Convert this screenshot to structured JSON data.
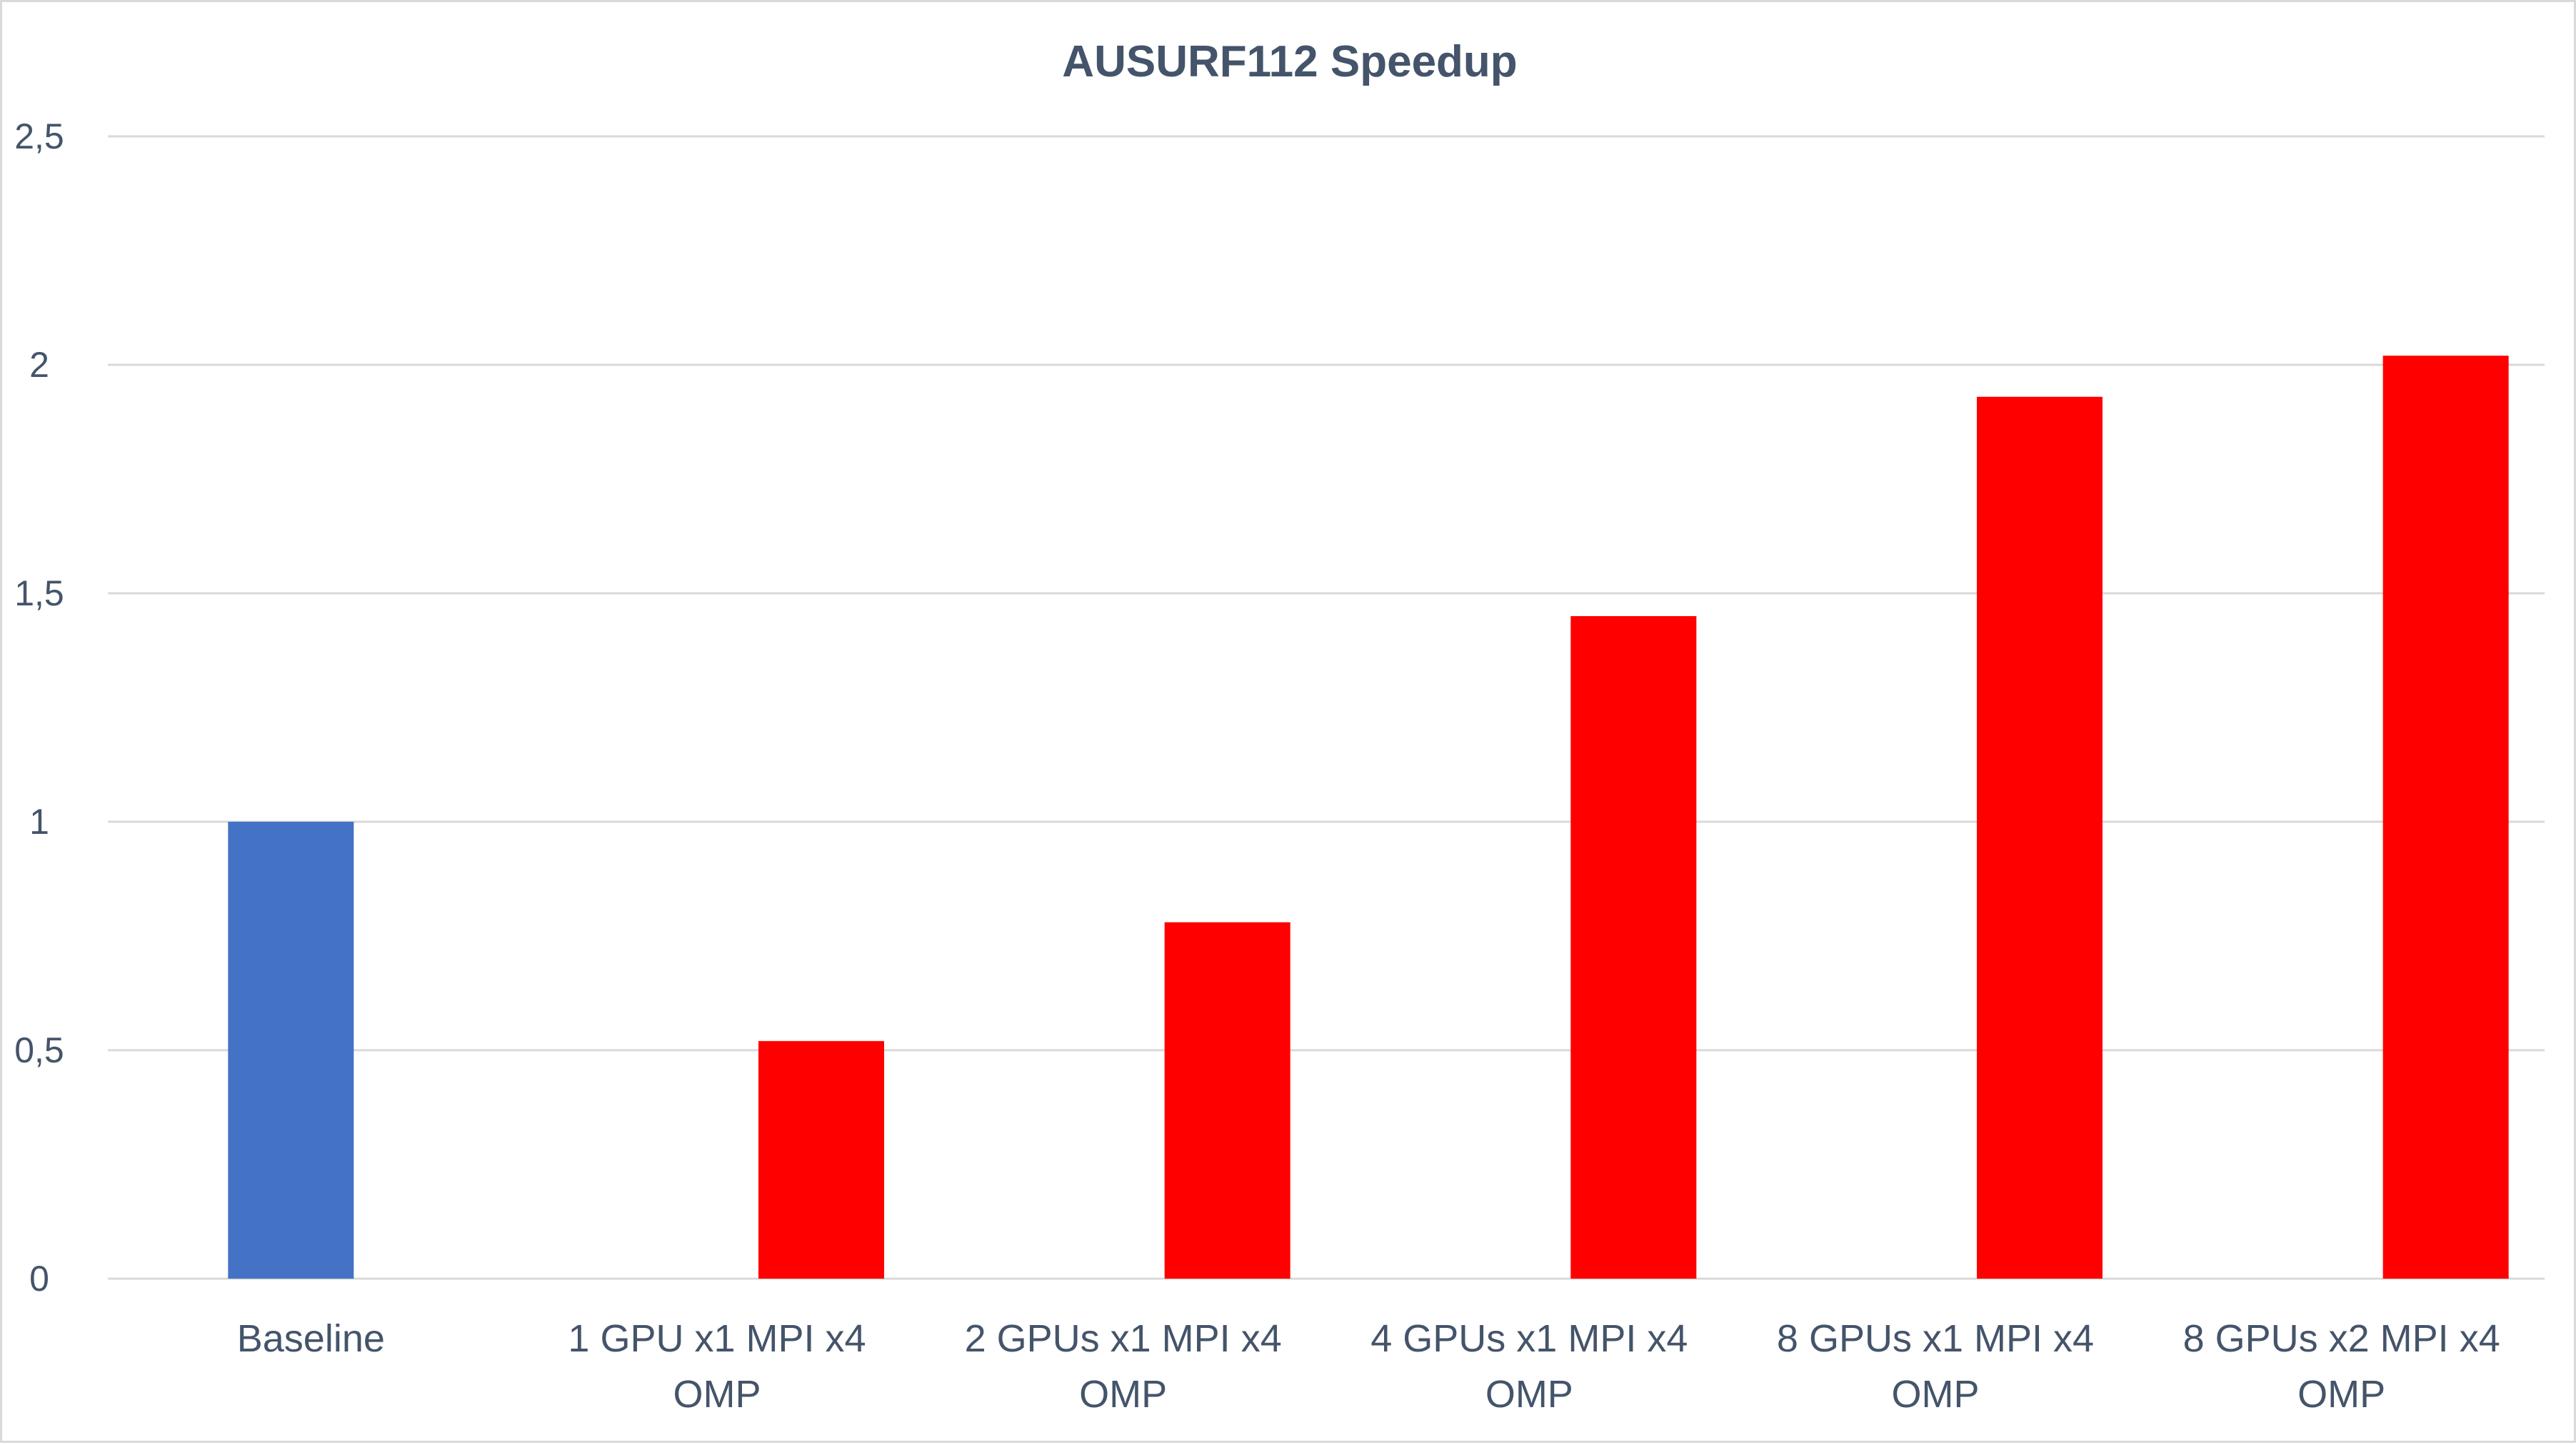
{
  "chart_data": {
    "type": "bar",
    "title": "AUSURF112 Speedup",
    "xlabel": "",
    "ylabel": "",
    "categories": [
      [
        "Baseline"
      ],
      [
        "1 GPU x1 MPI x4",
        "OMP"
      ],
      [
        "2 GPUs x1 MPI x4",
        "OMP"
      ],
      [
        "4 GPUs x1 MPI x4",
        "OMP"
      ],
      [
        "8 GPUs x1 MPI x4",
        "OMP"
      ],
      [
        "8 GPUs x2 MPI x4",
        "OMP"
      ]
    ],
    "values": [
      1.0,
      0.52,
      0.78,
      1.45,
      1.93,
      2.02
    ],
    "bar_colors": [
      "#4472c4",
      "#ff0000",
      "#ff0000",
      "#ff0000",
      "#ff0000",
      "#ff0000"
    ],
    "ylim": [
      0,
      2.5
    ],
    "yticks": [
      0,
      0.5,
      1,
      1.5,
      2,
      2.5
    ],
    "ytick_labels": [
      "0",
      "0,5",
      "1",
      "1,5",
      "2",
      "2,5"
    ],
    "grid": true,
    "legend": "none"
  }
}
